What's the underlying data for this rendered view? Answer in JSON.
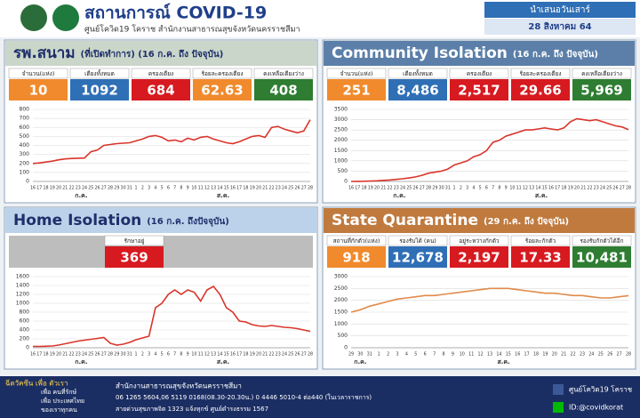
{
  "header": {
    "title": "สถานการณ์ COVID-19",
    "subtitle": "ศูนย์โควิด19 โคราช สำนักงานสาธารณสุขจังหวัดนครราชสีมา",
    "day": "นำเสนอวันเสาร์",
    "date": "28 สิงหาคม 64"
  },
  "panels": [
    {
      "title": "รพ.สนาม",
      "subtitle": "(ที่เปิดทำการ) (16 ก.ค. ถึง ปัจจุบัน)",
      "stats": [
        {
          "label": "จำนวน(แห่ง)",
          "value": "10",
          "color": "#f08a2c"
        },
        {
          "label": "เตียงทั้งหมด",
          "value": "1092",
          "color": "#2f6fb5"
        },
        {
          "label": "ครองเตียง",
          "value": "684",
          "color": "#d71920"
        },
        {
          "label": "ร้อยละครองเตียง",
          "value": "62.63",
          "color": "#f08a2c"
        },
        {
          "label": "คงเหลือเตียงว่าง",
          "value": "408",
          "color": "#2e7d32"
        }
      ]
    },
    {
      "title": "Community Isolation",
      "subtitle": "(16 ก.ค. ถึง ปัจจุบัน)",
      "stats": [
        {
          "label": "จำนวน(แห่ง)",
          "value": "251",
          "color": "#f08a2c"
        },
        {
          "label": "เตียงทั้งหมด",
          "value": "8,486",
          "color": "#2f6fb5"
        },
        {
          "label": "ครองเตียง",
          "value": "2,517",
          "color": "#d71920"
        },
        {
          "label": "ร้อยละครองเตียง",
          "value": "29.66",
          "color": "#d71920"
        },
        {
          "label": "คงเหลือเตียงว่าง",
          "value": "5,969",
          "color": "#2e7d32"
        }
      ]
    },
    {
      "title": "Home Isolation",
      "subtitle": "(16 ก.ค. ถึงปัจจุบัน)",
      "stats": [
        {
          "label": "รักษาอยู่",
          "value": "369",
          "color": "#d71920"
        }
      ]
    },
    {
      "title": "State Quarantine",
      "subtitle": "(29 ก.ค. ถึง ปัจจุบัน)",
      "stats": [
        {
          "label": "สถานที่กักตัว(แห่ง)",
          "value": "918",
          "color": "#f08a2c"
        },
        {
          "label": "รองรับได้ (คน)",
          "value": "12,678",
          "color": "#2f6fb5"
        },
        {
          "label": "อยู่ระหว่างกักตัว",
          "value": "2,197",
          "color": "#d71920"
        },
        {
          "label": "ร้อยละกักตัว",
          "value": "17.33",
          "color": "#d71920"
        },
        {
          "label": "รองรับกักตัวได้อีก",
          "value": "10,481",
          "color": "#2e7d32"
        }
      ]
    }
  ],
  "chart_data": [
    {
      "type": "line",
      "color": "#d9352b",
      "months": [
        "ก.ค.",
        "ส.ค."
      ],
      "categories": [
        "16",
        "17",
        "18",
        "19",
        "20",
        "21",
        "22",
        "23",
        "24",
        "25",
        "26",
        "27",
        "28",
        "29",
        "30",
        "31",
        "1",
        "2",
        "3",
        "4",
        "5",
        "6",
        "7",
        "8",
        "9",
        "10",
        "11",
        "12",
        "13",
        "14",
        "15",
        "16",
        "17",
        "18",
        "19",
        "20",
        "21",
        "22",
        "23",
        "24",
        "25",
        "26",
        "27",
        "28"
      ],
      "values": [
        200,
        205,
        215,
        225,
        240,
        250,
        255,
        258,
        260,
        330,
        350,
        400,
        410,
        420,
        425,
        430,
        450,
        470,
        500,
        510,
        490,
        450,
        460,
        440,
        480,
        460,
        490,
        500,
        470,
        450,
        430,
        420,
        440,
        470,
        500,
        510,
        490,
        600,
        610,
        580,
        560,
        540,
        560,
        684
      ],
      "ylim": [
        0,
        800
      ],
      "yticks": [
        0,
        100,
        200,
        300,
        400,
        500,
        600,
        700,
        800
      ]
    },
    {
      "type": "line",
      "color": "#d9352b",
      "months": [
        "ก.ค.",
        "ส.ค."
      ],
      "categories": [
        "16",
        "17",
        "18",
        "19",
        "20",
        "21",
        "22",
        "23",
        "24",
        "25",
        "26",
        "27",
        "28",
        "29",
        "30",
        "31",
        "1",
        "2",
        "3",
        "4",
        "5",
        "6",
        "7",
        "8",
        "9",
        "10",
        "11",
        "12",
        "13",
        "14",
        "15",
        "16",
        "17",
        "18",
        "19",
        "20",
        "21",
        "22",
        "23",
        "24",
        "25",
        "26",
        "27",
        "28"
      ],
      "values": [
        0,
        5,
        10,
        20,
        30,
        50,
        70,
        100,
        130,
        170,
        220,
        300,
        400,
        450,
        500,
        600,
        800,
        900,
        1000,
        1200,
        1300,
        1500,
        1900,
        2000,
        2200,
        2300,
        2400,
        2500,
        2500,
        2550,
        2600,
        2550,
        2500,
        2600,
        2900,
        3050,
        3000,
        2950,
        3000,
        2900,
        2800,
        2700,
        2650,
        2517
      ],
      "ylim": [
        0,
        3500
      ],
      "yticks": [
        0,
        500,
        1000,
        1500,
        2000,
        2500,
        3000,
        3500
      ]
    },
    {
      "type": "line",
      "color": "#d9352b",
      "months": [
        "ก.ค.",
        "ส.ค."
      ],
      "categories": [
        "16",
        "17",
        "18",
        "19",
        "20",
        "21",
        "22",
        "23",
        "24",
        "25",
        "26",
        "27",
        "28",
        "29",
        "30",
        "31",
        "1",
        "2",
        "3",
        "4",
        "5",
        "6",
        "7",
        "8",
        "9",
        "10",
        "11",
        "12",
        "13",
        "14",
        "15",
        "16",
        "17",
        "18",
        "19",
        "20",
        "21",
        "22",
        "23",
        "24",
        "25",
        "26",
        "27",
        "28"
      ],
      "values": [
        30,
        30,
        35,
        40,
        60,
        90,
        120,
        150,
        170,
        190,
        210,
        230,
        100,
        60,
        80,
        120,
        180,
        220,
        260,
        900,
        1000,
        1200,
        1300,
        1200,
        1300,
        1250,
        1050,
        1300,
        1380,
        1200,
        900,
        800,
        600,
        580,
        520,
        490,
        480,
        500,
        480,
        460,
        450,
        430,
        400,
        369
      ],
      "ylim": [
        0,
        1600
      ],
      "yticks": [
        0,
        200,
        400,
        600,
        800,
        1000,
        1200,
        1400,
        1600
      ]
    },
    {
      "type": "line",
      "color": "#e08a4a",
      "months": [
        "ก.ค.",
        "ส.ค."
      ],
      "categories": [
        "29",
        "30",
        "31",
        "1",
        "2",
        "3",
        "4",
        "5",
        "6",
        "7",
        "8",
        "9",
        "10",
        "11",
        "12",
        "13",
        "14",
        "15",
        "16",
        "17",
        "18",
        "19",
        "20",
        "21",
        "22",
        "23",
        "24",
        "25",
        "26",
        "27",
        "28"
      ],
      "values": [
        1500,
        1600,
        1750,
        1850,
        1950,
        2050,
        2100,
        2150,
        2200,
        2200,
        2250,
        2300,
        2350,
        2400,
        2450,
        2500,
        2500,
        2500,
        2450,
        2400,
        2350,
        2300,
        2300,
        2250,
        2200,
        2200,
        2150,
        2100,
        2100,
        2150,
        2197
      ],
      "ylim": [
        0,
        3000
      ],
      "yticks": [
        0,
        500,
        1000,
        1500,
        2000,
        2500,
        3000
      ]
    }
  ],
  "footer": {
    "vaccine": [
      "ฉีดวัคซีน เพื่อ ตัวเรา",
      "เพื่อ คนที่รักษ์",
      "เพื่อ ประเทศไทย",
      "ของเราทุกคน"
    ],
    "office": "สำนักงานสาธารณสุขจังหวัดนครราชสีมา",
    "phones": "06 1265 5604,06 5119 0168(08.30-20.30น.) 0 4446 5010-4 ต่อ440 (ในเวลาราชการ)",
    "hotline": "สายด่วนสุขภาพจิต 1323 แจ้งทุกข์ ศูนย์ดำรงธรรม 1567",
    "facebook": "ศูนย์โควิด19 โคราช",
    "line": "ID:@covidkorat"
  }
}
